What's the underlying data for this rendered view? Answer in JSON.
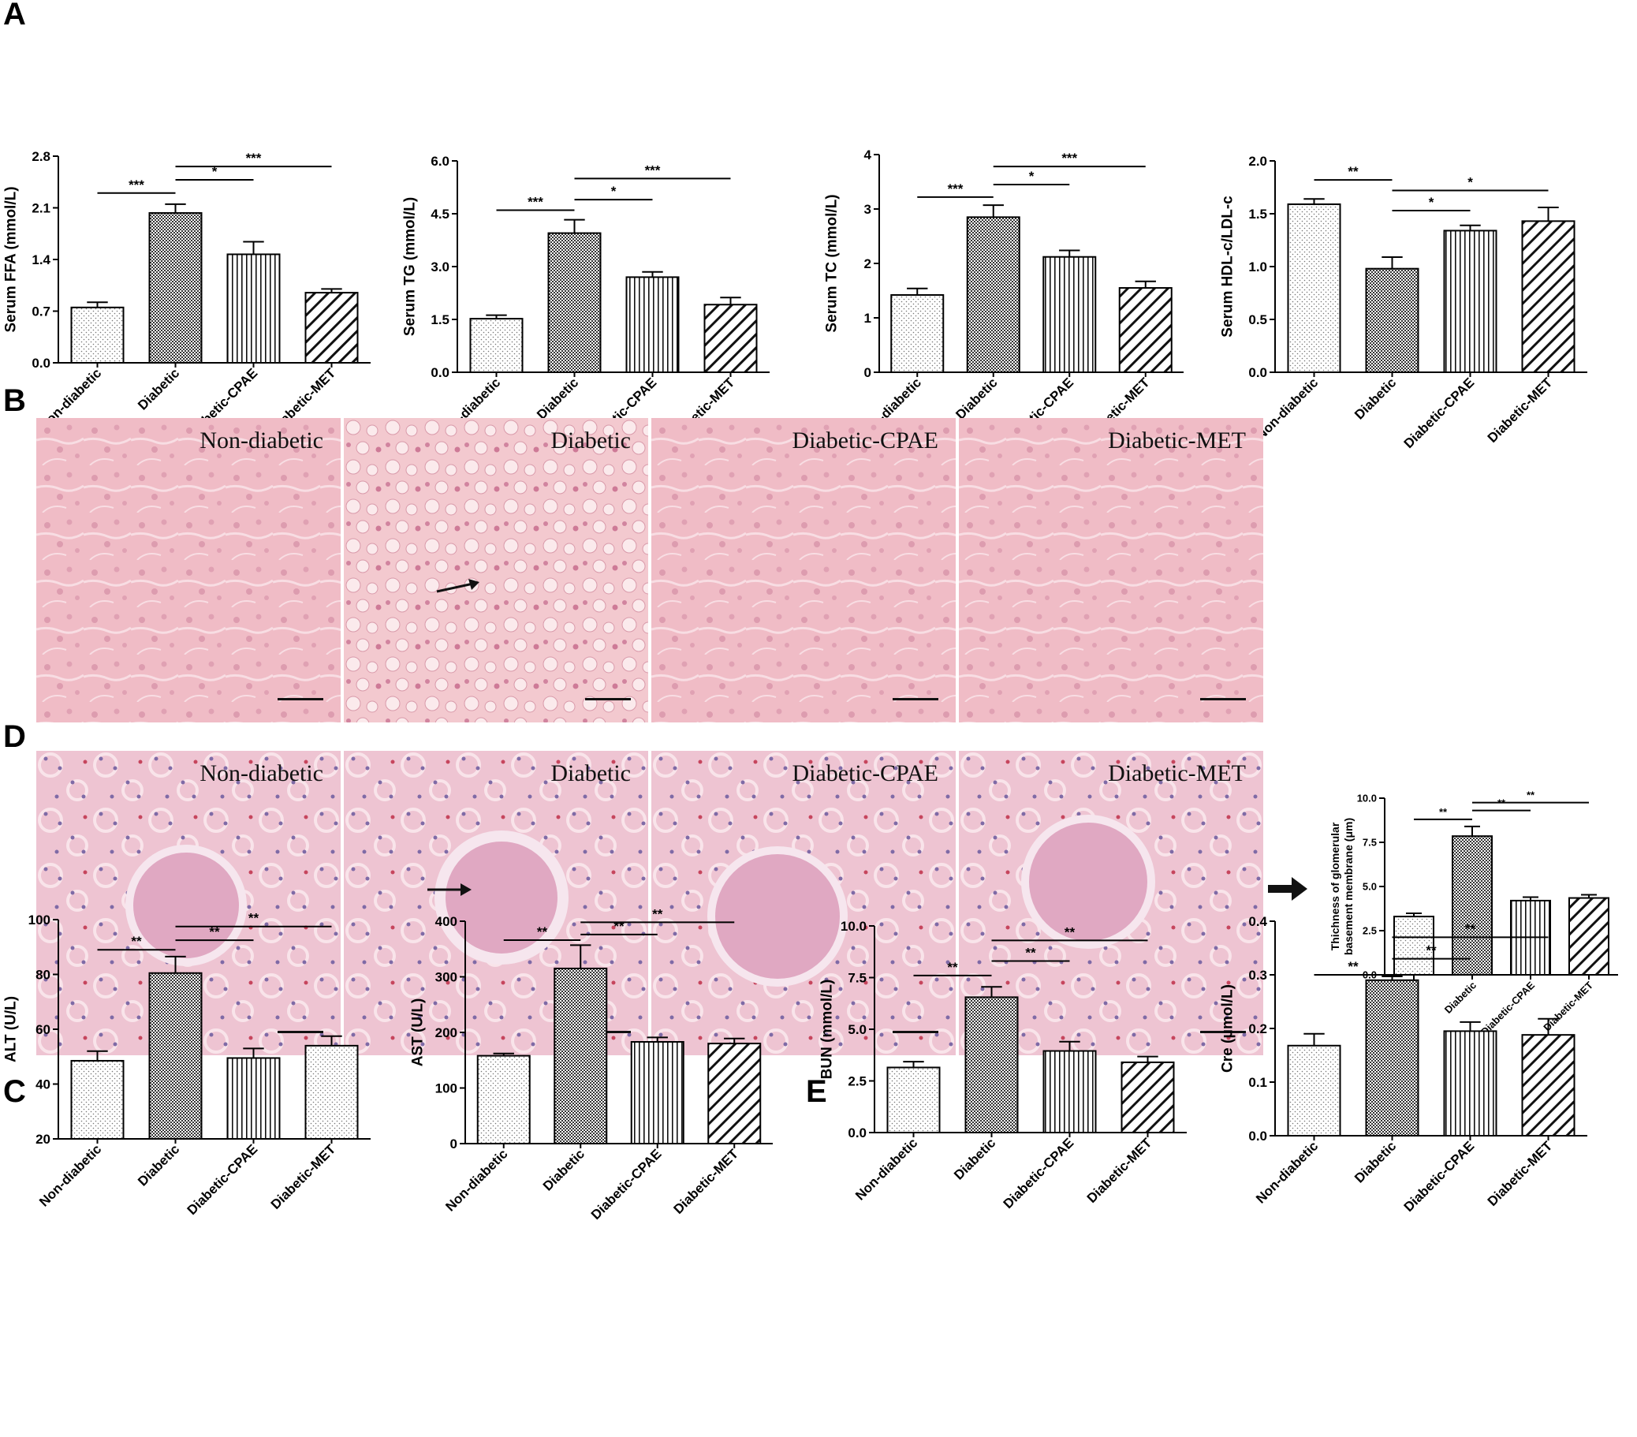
{
  "panels": {
    "A": "A",
    "B": "B",
    "C": "C",
    "D": "D",
    "E": "E"
  },
  "micrographs": {
    "B": [
      "Non-diabetic",
      "Diabetic",
      "Diabetic-CPAE",
      "Diabetic-MET"
    ],
    "D": [
      "Non-diabetic",
      "Diabetic",
      "Diabetic-CPAE",
      "Diabetic-MET"
    ]
  },
  "colors": {
    "liver_bg": "#f0bcc6",
    "kidney_bg": "#eec4d2",
    "bar_stroke": "#000000"
  },
  "chart_data": [
    {
      "id": "ffa",
      "type": "bar",
      "categories": [
        "Non-diabetic",
        "Diabetic",
        "Diabetic-CPAE",
        "Diabetic-MET"
      ],
      "values": [
        0.75,
        2.03,
        1.47,
        0.95
      ],
      "errors": [
        0.07,
        0.12,
        0.17,
        0.05
      ],
      "patterns": [
        "dots",
        "crosshatch",
        "vlines",
        "diag"
      ],
      "ylabel": "Serum FFA (mmol/L)",
      "ylim": [
        0,
        2.8
      ],
      "yticks": [
        "0.0",
        "0.7",
        "1.4",
        "2.1",
        "2.8"
      ],
      "sig": [
        {
          "from": 0,
          "to": 1,
          "y": 2.3,
          "label": "***"
        },
        {
          "from": 1,
          "to": 2,
          "y": 2.48,
          "label": "*"
        },
        {
          "from": 1,
          "to": 3,
          "y": 2.66,
          "label": "***"
        }
      ]
    },
    {
      "id": "tg",
      "type": "bar",
      "categories": [
        "Non-diabetic",
        "Diabetic",
        "Diabetic-CPAE",
        "Diabetic-MET"
      ],
      "values": [
        1.52,
        3.95,
        2.7,
        1.92
      ],
      "errors": [
        0.1,
        0.38,
        0.15,
        0.2
      ],
      "patterns": [
        "dots",
        "crosshatch",
        "vlines",
        "diag"
      ],
      "ylabel": "Serum TG (mmol/L)",
      "ylim": [
        0,
        6.0
      ],
      "yticks": [
        "0.0",
        "1.5",
        "3.0",
        "4.5",
        "6.0"
      ],
      "sig": [
        {
          "from": 0,
          "to": 1,
          "y": 4.6,
          "label": "***"
        },
        {
          "from": 1,
          "to": 2,
          "y": 4.9,
          "label": "*"
        },
        {
          "from": 1,
          "to": 3,
          "y": 5.5,
          "label": "***"
        }
      ]
    },
    {
      "id": "tc",
      "type": "bar",
      "categories": [
        "Non-diabetic",
        "Diabetic",
        "Diabetic-CPAE",
        "Diabetic-MET"
      ],
      "values": [
        1.42,
        2.85,
        2.12,
        1.55
      ],
      "errors": [
        0.12,
        0.22,
        0.12,
        0.12
      ],
      "patterns": [
        "dots",
        "crosshatch",
        "vlines",
        "diag"
      ],
      "ylabel": "Serum TC (mmol/L)",
      "ylim": [
        0,
        4
      ],
      "yticks": [
        "0",
        "1",
        "2",
        "3",
        "4"
      ],
      "sig": [
        {
          "from": 0,
          "to": 1,
          "y": 3.22,
          "label": "***"
        },
        {
          "from": 1,
          "to": 2,
          "y": 3.45,
          "label": "*"
        },
        {
          "from": 1,
          "to": 3,
          "y": 3.78,
          "label": "***"
        }
      ]
    },
    {
      "id": "hdl",
      "type": "bar",
      "categories": [
        "Non-diabetic",
        "Diabetic",
        "Diabetic-CPAE",
        "Diabetic-MET"
      ],
      "values": [
        1.59,
        0.98,
        1.34,
        1.43
      ],
      "errors": [
        0.05,
        0.11,
        0.05,
        0.13
      ],
      "patterns": [
        "dots",
        "crosshatch",
        "vlines",
        "diag"
      ],
      "ylabel": "Serum HDL-c/LDL-c",
      "ylim": [
        0,
        2.0
      ],
      "yticks": [
        "0.0",
        "0.5",
        "1.0",
        "1.5",
        "2.0"
      ],
      "sig": [
        {
          "from": 0,
          "to": 1,
          "y": 1.82,
          "label": "**"
        },
        {
          "from": 1,
          "to": 2,
          "y": 1.53,
          "label": "*"
        },
        {
          "from": 1,
          "to": 3,
          "y": 1.72,
          "label": "*"
        }
      ]
    },
    {
      "id": "gbm",
      "type": "bar",
      "categories": [
        "Non-diabetic",
        "Diabetic",
        "Diabetic-CPAE",
        "Diabetic-MET"
      ],
      "values": [
        3.3,
        7.85,
        4.2,
        4.35
      ],
      "errors": [
        0.18,
        0.55,
        0.2,
        0.18
      ],
      "patterns": [
        "dots",
        "crosshatch",
        "vlines",
        "diag"
      ],
      "ylabel": "Thichness of glomerular basement membrane (μm)",
      "ylim": [
        0,
        10.0
      ],
      "yticks": [
        "0.0",
        "2.5",
        "5.0",
        "7.5",
        "10.0"
      ],
      "sig": [
        {
          "from": 0,
          "to": 1,
          "y": 8.8,
          "label": "**"
        },
        {
          "from": 1,
          "to": 2,
          "y": 9.3,
          "label": "**"
        },
        {
          "from": 1,
          "to": 3,
          "y": 9.75,
          "label": "**"
        }
      ]
    },
    {
      "id": "alt",
      "type": "bar",
      "categories": [
        "Non-diabetic",
        "Diabetic",
        "Diabetic-CPAE",
        "Diabetic-MET"
      ],
      "values": [
        48.5,
        80.5,
        49.5,
        54
      ],
      "errors": [
        3.5,
        6,
        3.5,
        3.5
      ],
      "patterns": [
        "dots",
        "crosshatch",
        "vlines",
        "dots"
      ],
      "ylabel": "ALT (U/L)",
      "ylim": [
        20,
        100
      ],
      "yticks": [
        "20",
        "40",
        "60",
        "80",
        "100"
      ],
      "sig": [
        {
          "from": 0,
          "to": 1,
          "y": 89,
          "label": "**"
        },
        {
          "from": 1,
          "to": 2,
          "y": 92.5,
          "label": "**"
        },
        {
          "from": 1,
          "to": 3,
          "y": 97.5,
          "label": "**"
        }
      ]
    },
    {
      "id": "ast",
      "type": "bar",
      "categories": [
        "Non-diabetic",
        "Diabetic",
        "Diabetic-CPAE",
        "Diabetic-MET"
      ],
      "values": [
        158,
        315,
        183,
        180
      ],
      "errors": [
        4,
        42,
        8,
        9
      ],
      "patterns": [
        "dots",
        "crosshatch",
        "vlines",
        "diag"
      ],
      "ylabel": "AST (U/L)",
      "ylim": [
        0,
        400
      ],
      "yticks": [
        "0",
        "100",
        "200",
        "300",
        "400"
      ],
      "sig": [
        {
          "from": 0,
          "to": 1,
          "y": 366,
          "label": "**"
        },
        {
          "from": 1,
          "to": 2,
          "y": 376,
          "label": "**"
        },
        {
          "from": 1,
          "to": 3,
          "y": 398,
          "label": "**"
        }
      ]
    },
    {
      "id": "bun",
      "type": "bar",
      "categories": [
        "Non-diabetic",
        "Diabetic",
        "Diabetic-CPAE",
        "Diabetic-MET"
      ],
      "values": [
        3.15,
        6.55,
        3.95,
        3.4
      ],
      "errors": [
        0.28,
        0.5,
        0.45,
        0.28
      ],
      "patterns": [
        "dots",
        "crosshatch",
        "vlines",
        "diag"
      ],
      "ylabel": "BUN (mmol/L)",
      "ylim": [
        0,
        10.0
      ],
      "yticks": [
        "0.0",
        "2.5",
        "5.0",
        "7.5",
        "10.0"
      ],
      "sig": [
        {
          "from": 0,
          "to": 1,
          "y": 7.6,
          "label": "**"
        },
        {
          "from": 1,
          "to": 2,
          "y": 8.3,
          "label": "**"
        },
        {
          "from": 1,
          "to": 3,
          "y": 9.3,
          "label": "**"
        }
      ]
    },
    {
      "id": "cre",
      "type": "bar",
      "categories": [
        "Non-diabetic",
        "Diabetic",
        "Diabetic-CPAE",
        "Diabetic-MET"
      ],
      "values": [
        0.168,
        0.29,
        0.195,
        0.188
      ],
      "errors": [
        0.022,
        0.007,
        0.017,
        0.03
      ],
      "patterns": [
        "dots",
        "crosshatch",
        "vlines",
        "diag"
      ],
      "ylabel": "Cre (μmol/L)",
      "ylim": [
        0,
        0.4
      ],
      "yticks": [
        "0.0",
        "0.1",
        "0.2",
        "0.3",
        "0.4"
      ],
      "sig": [
        {
          "from": 0,
          "to": 1,
          "y": 0.3,
          "label": "**"
        },
        {
          "from": 1,
          "to": 2,
          "y": 0.33,
          "label": "**"
        },
        {
          "from": 1,
          "to": 3,
          "y": 0.37,
          "label": "**"
        }
      ]
    }
  ]
}
